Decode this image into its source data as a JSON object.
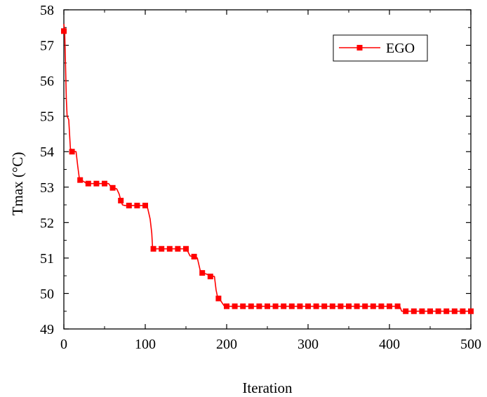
{
  "chart_data": {
    "type": "line",
    "title": "",
    "xlabel": "Iteration",
    "ylabel": "Tmax (°C)",
    "xlim": [
      0,
      500
    ],
    "ylim": [
      49,
      58
    ],
    "xticks": [
      "0",
      "100",
      "200",
      "300",
      "400",
      "500"
    ],
    "yticks": [
      "49",
      "50",
      "51",
      "52",
      "53",
      "54",
      "55",
      "56",
      "57",
      "58"
    ],
    "grid": false,
    "legend_position": "top-right",
    "series": [
      {
        "name": "EGO",
        "color": "#ff0000",
        "marker": "square",
        "line": [
          [
            0,
            57.6
          ],
          [
            1,
            57.4
          ],
          [
            2,
            56.5
          ],
          [
            3,
            55.5
          ],
          [
            4,
            55.0
          ],
          [
            6,
            54.9
          ],
          [
            8,
            54.1
          ],
          [
            10,
            54.0
          ],
          [
            15,
            54.0
          ],
          [
            17,
            53.6
          ],
          [
            19,
            53.25
          ],
          [
            21,
            53.2
          ],
          [
            25,
            53.15
          ],
          [
            28,
            53.1
          ],
          [
            30,
            53.1
          ],
          [
            50,
            53.1
          ],
          [
            55,
            53.1
          ],
          [
            58,
            53.0
          ],
          [
            60,
            52.98
          ],
          [
            65,
            52.95
          ],
          [
            68,
            52.8
          ],
          [
            70,
            52.62
          ],
          [
            72,
            52.5
          ],
          [
            75,
            52.48
          ],
          [
            100,
            52.48
          ],
          [
            103,
            52.4
          ],
          [
            105,
            52.2
          ],
          [
            106,
            52.1
          ],
          [
            108,
            51.7
          ],
          [
            109,
            51.28
          ],
          [
            110,
            51.26
          ],
          [
            150,
            51.26
          ],
          [
            152,
            51.2
          ],
          [
            155,
            51.06
          ],
          [
            160,
            51.04
          ],
          [
            164,
            51.0
          ],
          [
            166,
            50.8
          ],
          [
            168,
            50.6
          ],
          [
            170,
            50.58
          ],
          [
            175,
            50.55
          ],
          [
            180,
            50.5
          ],
          [
            185,
            50.48
          ],
          [
            187,
            50.1
          ],
          [
            189,
            49.88
          ],
          [
            192,
            49.82
          ],
          [
            194,
            49.75
          ],
          [
            197,
            49.65
          ],
          [
            200,
            49.64
          ],
          [
            410,
            49.64
          ],
          [
            413,
            49.62
          ],
          [
            415,
            49.5
          ],
          [
            500,
            49.5
          ]
        ],
        "markers": [
          [
            0,
            57.4
          ],
          [
            10,
            54.0
          ],
          [
            20,
            53.2
          ],
          [
            30,
            53.1
          ],
          [
            40,
            53.1
          ],
          [
            50,
            53.1
          ],
          [
            60,
            52.98
          ],
          [
            70,
            52.62
          ],
          [
            80,
            52.48
          ],
          [
            90,
            52.48
          ],
          [
            100,
            52.48
          ],
          [
            110,
            51.26
          ],
          [
            120,
            51.26
          ],
          [
            130,
            51.26
          ],
          [
            140,
            51.26
          ],
          [
            150,
            51.26
          ],
          [
            160,
            51.04
          ],
          [
            170,
            50.58
          ],
          [
            180,
            50.48
          ],
          [
            190,
            49.86
          ],
          [
            200,
            49.64
          ],
          [
            210,
            49.64
          ],
          [
            220,
            49.64
          ],
          [
            230,
            49.64
          ],
          [
            240,
            49.64
          ],
          [
            250,
            49.64
          ],
          [
            260,
            49.64
          ],
          [
            270,
            49.64
          ],
          [
            280,
            49.64
          ],
          [
            290,
            49.64
          ],
          [
            300,
            49.64
          ],
          [
            310,
            49.64
          ],
          [
            320,
            49.64
          ],
          [
            330,
            49.64
          ],
          [
            340,
            49.64
          ],
          [
            350,
            49.64
          ],
          [
            360,
            49.64
          ],
          [
            370,
            49.64
          ],
          [
            380,
            49.64
          ],
          [
            390,
            49.64
          ],
          [
            400,
            49.64
          ],
          [
            410,
            49.64
          ],
          [
            420,
            49.5
          ],
          [
            430,
            49.5
          ],
          [
            440,
            49.5
          ],
          [
            450,
            49.5
          ],
          [
            460,
            49.5
          ],
          [
            470,
            49.5
          ],
          [
            480,
            49.5
          ],
          [
            490,
            49.5
          ],
          [
            500,
            49.5
          ]
        ]
      }
    ]
  }
}
